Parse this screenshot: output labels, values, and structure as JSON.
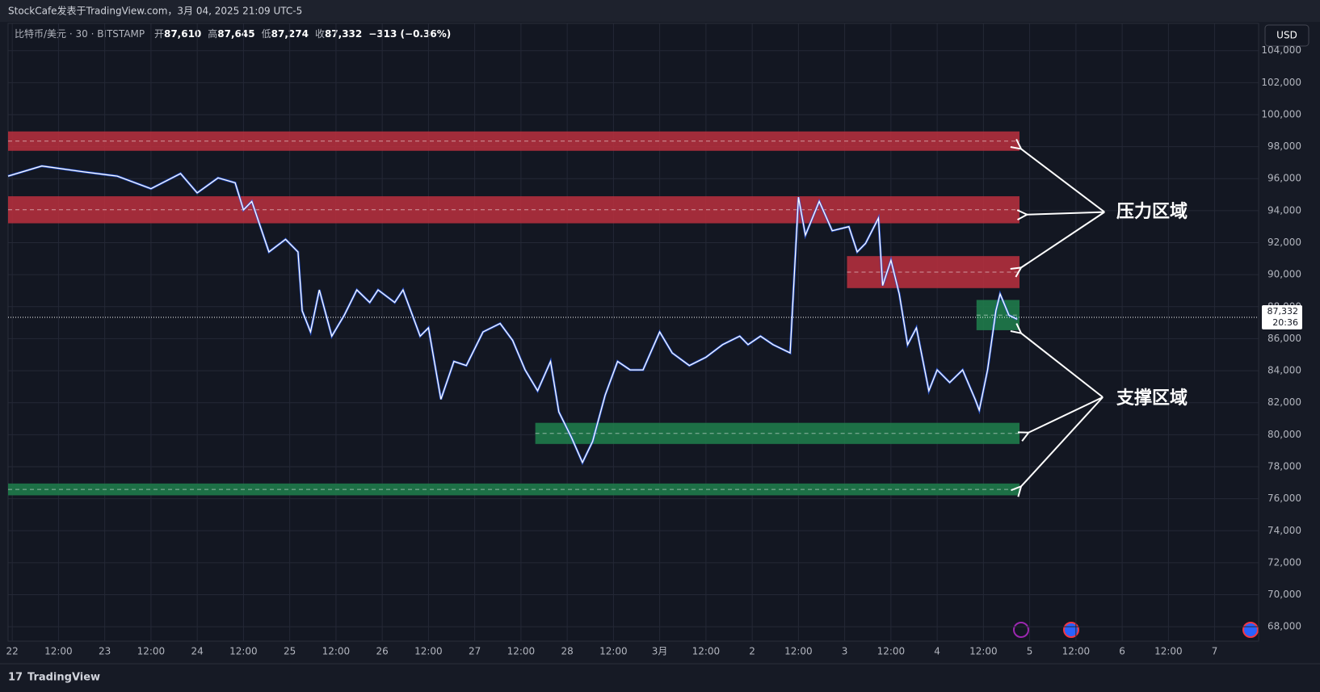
{
  "header": {
    "title": "StockCafe发表于TradingView.com，3月 04, 2025 21:09 UTC-5",
    "symbol": "比特币/美元 · 30 · BITSTAMP",
    "ohlc": [
      {
        "label": "开",
        "value": "87,610"
      },
      {
        "label": "高",
        "value": "87,645"
      },
      {
        "label": "低",
        "value": "87,274"
      },
      {
        "label": "收",
        "value": "87,332"
      }
    ],
    "change": "−313 (−0.36%)",
    "currency": "USD",
    "brand": "TradingView"
  },
  "chart_data": {
    "type": "line",
    "color": "#ffffff",
    "grid": true,
    "x": [
      -0.09,
      0.64,
      1.55,
      2.27,
      3.0,
      3.64,
      4.0,
      4.45,
      4.82,
      5.0,
      5.18,
      5.55,
      5.91,
      6.18,
      6.27,
      6.45,
      6.64,
      6.91,
      7.18,
      7.45,
      7.73,
      7.91,
      8.27,
      8.45,
      8.82,
      9.0,
      9.27,
      9.55,
      9.82,
      10.18,
      10.55,
      10.82,
      11.09,
      11.36,
      11.64,
      11.82,
      12.09,
      12.33,
      12.55,
      12.82,
      13.09,
      13.36,
      13.64,
      14.0,
      14.27,
      14.64,
      15.0,
      15.36,
      15.73,
      15.91,
      16.18,
      16.45,
      16.82,
      17.0,
      17.15,
      17.45,
      17.73,
      18.09,
      18.27,
      18.45,
      18.73,
      18.82,
      19.0,
      19.18,
      19.36,
      19.55,
      19.73,
      19.82,
      20.0,
      20.27,
      20.55,
      20.82,
      20.91,
      21.09,
      21.27,
      21.36,
      21.55,
      21.73
    ],
    "values": [
      96160,
      96790,
      96420,
      96160,
      95370,
      96320,
      95110,
      96050,
      95740,
      94050,
      94580,
      91420,
      92210,
      91420,
      87740,
      86420,
      89050,
      86160,
      87470,
      89050,
      88260,
      89050,
      88260,
      89050,
      86160,
      86680,
      82210,
      84580,
      84320,
      86420,
      86950,
      85890,
      84050,
      82740,
      84580,
      81420,
      79840,
      78260,
      79580,
      82470,
      84580,
      84050,
      84050,
      86420,
      85110,
      84320,
      84840,
      85630,
      86160,
      85630,
      86160,
      85630,
      85110,
      94840,
      92470,
      94580,
      92740,
      93000,
      91420,
      91950,
      93530,
      89320,
      90900,
      88790,
      85630,
      86680,
      84050,
      82740,
      84050,
      83260,
      84050,
      82210,
      81530,
      84050,
      87740,
      88790,
      87470,
      87210
    ],
    "xlim": [
      -0.09,
      26.95
    ],
    "xticks": [
      {
        "value": 0,
        "label": "22"
      },
      {
        "value": 1,
        "label": "12:00"
      },
      {
        "value": 2,
        "label": "23"
      },
      {
        "value": 3,
        "label": "12:00"
      },
      {
        "value": 4,
        "label": "24"
      },
      {
        "value": 5,
        "label": "12:00"
      },
      {
        "value": 6,
        "label": "25"
      },
      {
        "value": 7,
        "label": "12:00"
      },
      {
        "value": 8,
        "label": "26"
      },
      {
        "value": 9,
        "label": "12:00"
      },
      {
        "value": 10,
        "label": "27"
      },
      {
        "value": 11,
        "label": "12:00"
      },
      {
        "value": 12,
        "label": "28"
      },
      {
        "value": 13,
        "label": "12:00"
      },
      {
        "value": 14,
        "label": "3月"
      },
      {
        "value": 15,
        "label": "12:00"
      },
      {
        "value": 16,
        "label": "2"
      },
      {
        "value": 17,
        "label": "12:00"
      },
      {
        "value": 18,
        "label": "3"
      },
      {
        "value": 19,
        "label": "12:00"
      },
      {
        "value": 20,
        "label": "4"
      },
      {
        "value": 21,
        "label": "12:00"
      },
      {
        "value": 22,
        "label": "5"
      },
      {
        "value": 23,
        "label": "12:00"
      },
      {
        "value": 24,
        "label": "6"
      },
      {
        "value": 25,
        "label": "12:00"
      },
      {
        "value": 26,
        "label": "7"
      }
    ],
    "ylim": [
      67100,
      105700
    ],
    "yticks": [
      {
        "value": 68000,
        "label": "68,000"
      },
      {
        "value": 70000,
        "label": "70,000"
      },
      {
        "value": 72000,
        "label": "72,000"
      },
      {
        "value": 74000,
        "label": "74,000"
      },
      {
        "value": 76000,
        "label": "76,000"
      },
      {
        "value": 78000,
        "label": "78,000"
      },
      {
        "value": 80000,
        "label": "80,000"
      },
      {
        "value": 82000,
        "label": "82,000"
      },
      {
        "value": 84000,
        "label": "84,000"
      },
      {
        "value": 86000,
        "label": "86,000"
      },
      {
        "value": 88000,
        "label": "88,000"
      },
      {
        "value": 90000,
        "label": "90,000"
      },
      {
        "value": 92000,
        "label": "92,000"
      },
      {
        "value": 94000,
        "label": "94,000"
      },
      {
        "value": 96000,
        "label": "96,000"
      },
      {
        "value": 98000,
        "label": "98,000"
      },
      {
        "value": 100000,
        "label": "100,000"
      },
      {
        "value": 102000,
        "label": "102,000"
      },
      {
        "value": 104000,
        "label": "104,000"
      }
    ],
    "zones": [
      {
        "color": "#b22f3d",
        "low": 97740,
        "high": 98950,
        "x": [
          -0.09,
          21.78
        ]
      },
      {
        "color": "#b22f3d",
        "low": 93210,
        "high": 94900,
        "x": [
          -0.09,
          21.78
        ]
      },
      {
        "color": "#b22f3d",
        "low": 89160,
        "high": 91160,
        "x": [
          18.05,
          21.78
        ]
      },
      {
        "color": "#1f7a4a",
        "low": 86530,
        "high": 88420,
        "x": [
          20.85,
          21.78
        ]
      },
      {
        "color": "#1f7a4a",
        "low": 79420,
        "high": 80740,
        "x": [
          11.31,
          21.78
        ]
      },
      {
        "color": "#1f7a4a",
        "low": 76210,
        "high": 76950,
        "x": [
          -0.09,
          21.78
        ]
      }
    ],
    "last_price": {
      "value": 87332,
      "label": "87,332",
      "countdown": "20:36"
    },
    "annotations": [
      "压力区域",
      "支撑区域"
    ]
  }
}
